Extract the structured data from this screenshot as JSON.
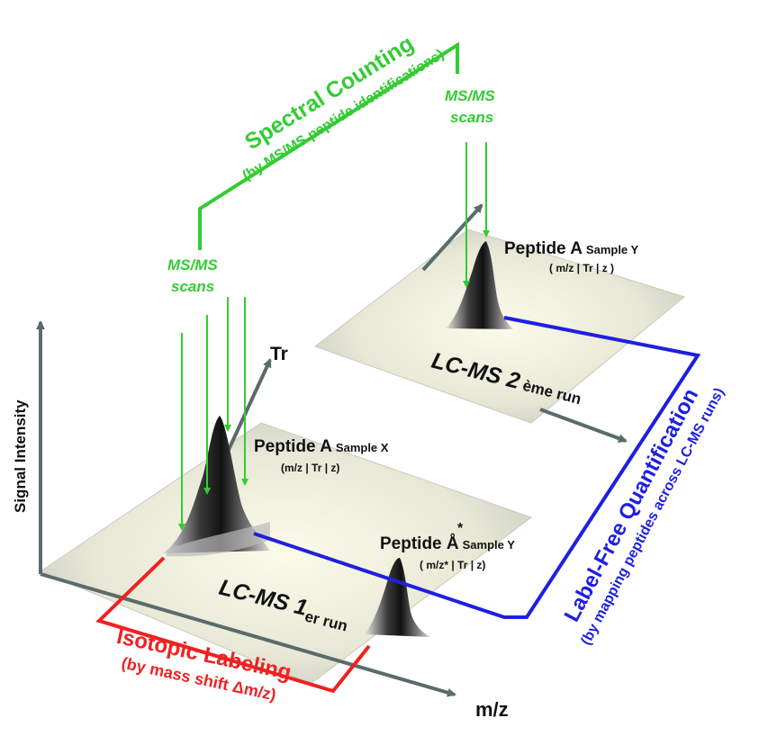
{
  "axes": {
    "signal_intensity": "Signal Intensity",
    "tr": "Tr",
    "mz": "m/z"
  },
  "runs": {
    "run1": {
      "main": "LC-MS 1",
      "suffix": "er run"
    },
    "run2": {
      "main": "LC-MS 2",
      "suffix": " ème run"
    }
  },
  "peptides": {
    "a_x": {
      "name": "Peptide A",
      "sample": "Sample X",
      "info": "(m/z | Tr | z)"
    },
    "a_y": {
      "name": "Peptide A",
      "sample": "Sample Y",
      "info": "( m/z | Tr | z )"
    },
    "a_star_y": {
      "name": "Peptide Å",
      "mark": "*",
      "sample": "Sample Y",
      "info": "( m/z* | Tr | z)"
    }
  },
  "msms": {
    "left": {
      "line1": "MS/MS",
      "line2": "scans"
    },
    "right": {
      "line1": "MS/MS",
      "line2": "scans"
    }
  },
  "methods": {
    "spectral_counting": {
      "title": "Spectral Counting",
      "subtitle": "(by MS/MS peptide identifications)",
      "color": "#33cc33"
    },
    "isotopic_labeling": {
      "title": "Isotopic Labeling",
      "subtitle": "(by mass shift Δm/z)",
      "color": "#ee2222"
    },
    "label_free": {
      "title": "Label-Free Quantification",
      "subtitle": "(by mapping peptides across LC-MS runs)",
      "color": "#1f1fe0"
    }
  }
}
